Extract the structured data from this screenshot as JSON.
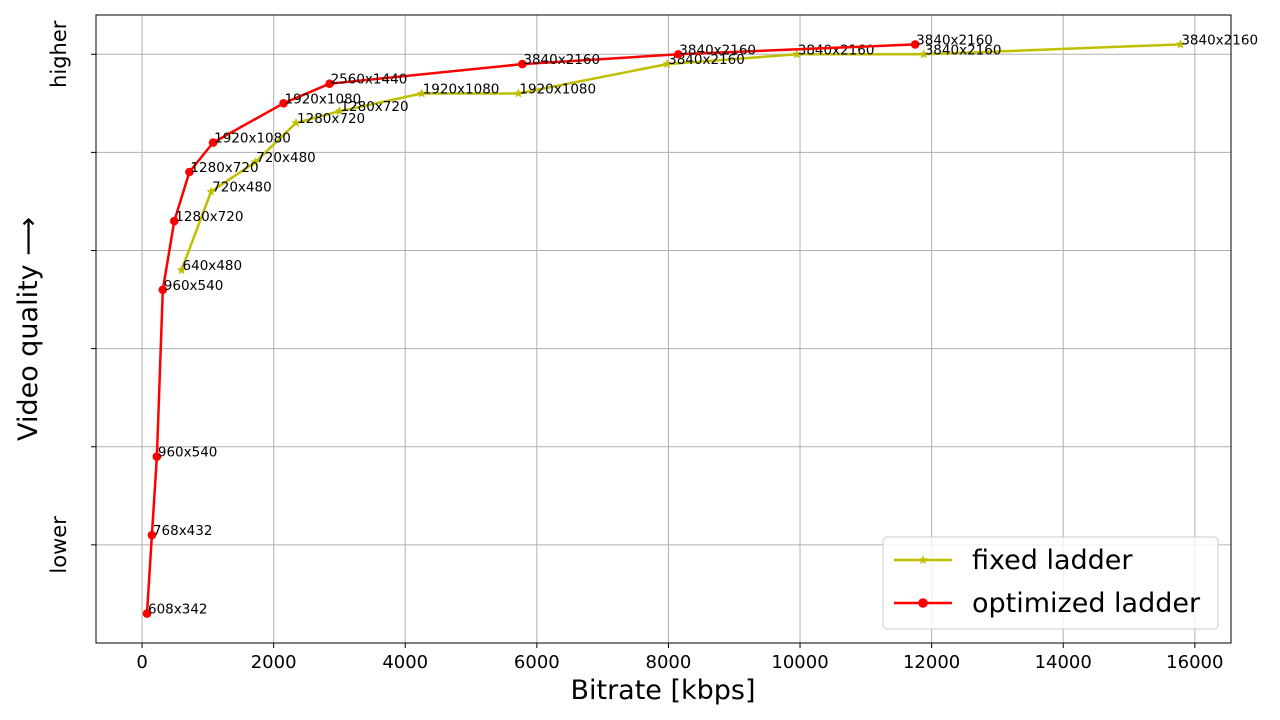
{
  "chart_data": {
    "type": "line",
    "xlabel": "Bitrate [kbps]",
    "ylabel": "Video quality ⟶",
    "xlim": [
      -700,
      16550
    ],
    "ylim": [
      -1.0,
      5.4
    ],
    "xticks": [
      0,
      2000,
      4000,
      6000,
      8000,
      10000,
      12000,
      14000,
      16000
    ],
    "yticks": [
      0,
      1,
      2,
      3,
      4,
      5
    ],
    "ytick_labels": [
      {
        "value": 0,
        "text": "lower"
      },
      {
        "value": 5,
        "text": "higher"
      }
    ],
    "grid": true,
    "legend_position": "bottom-right",
    "series": [
      {
        "name": "fixed ladder",
        "color": "#bfbf00",
        "marker": "star",
        "points": [
          {
            "x": 600,
            "y": 2.8,
            "label": "640x480"
          },
          {
            "x": 1050,
            "y": 3.6,
            "label": "720x480"
          },
          {
            "x": 1720,
            "y": 3.9,
            "label": "720x480"
          },
          {
            "x": 2340,
            "y": 4.3,
            "label": "1280x720"
          },
          {
            "x": 3000,
            "y": 4.42,
            "label": "1280x720"
          },
          {
            "x": 4250,
            "y": 4.6,
            "label": "1920x1080"
          },
          {
            "x": 5720,
            "y": 4.6,
            "label": "1920x1080"
          },
          {
            "x": 7980,
            "y": 4.9,
            "label": "3840x2160"
          },
          {
            "x": 9950,
            "y": 5.0,
            "label": "3840x2160"
          },
          {
            "x": 11880,
            "y": 5.0,
            "label": "3840x2160"
          },
          {
            "x": 15780,
            "y": 5.1,
            "label": "3840x2160"
          }
        ]
      },
      {
        "name": "optimized ladder",
        "color": "#ff0000",
        "marker": "circle",
        "points": [
          {
            "x": 75,
            "y": -0.7,
            "label": "608x342"
          },
          {
            "x": 150,
            "y": 0.1,
            "label": "768x432"
          },
          {
            "x": 225,
            "y": 0.9,
            "label": "960x540"
          },
          {
            "x": 315,
            "y": 2.6,
            "label": "960x540"
          },
          {
            "x": 490,
            "y": 3.3,
            "label": "1280x720"
          },
          {
            "x": 720,
            "y": 3.8,
            "label": "1280x720"
          },
          {
            "x": 1080,
            "y": 4.1,
            "label": "1920x1080"
          },
          {
            "x": 2150,
            "y": 4.5,
            "label": "1920x1080"
          },
          {
            "x": 2850,
            "y": 4.7,
            "label": "2560x1440"
          },
          {
            "x": 5780,
            "y": 4.9,
            "label": "3840x2160"
          },
          {
            "x": 8150,
            "y": 5.0,
            "label": "3840x2160"
          },
          {
            "x": 11750,
            "y": 5.1,
            "label": "3840x2160"
          }
        ]
      }
    ]
  }
}
